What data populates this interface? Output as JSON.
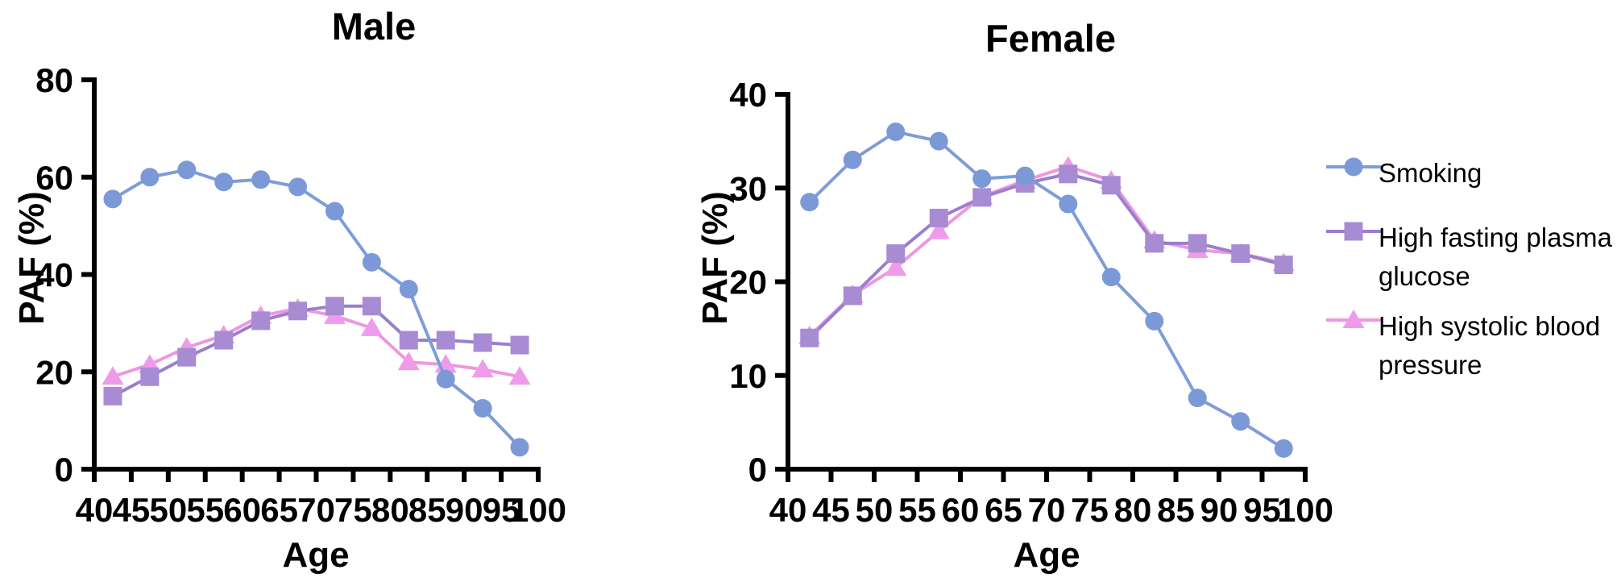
{
  "legend": {
    "items": [
      {
        "id": "smoking",
        "lines": [
          "Smoking"
        ]
      },
      {
        "id": "high-fasting-plasma-glucose",
        "lines": [
          "High fasting plasma",
          "glucose"
        ]
      },
      {
        "id": "high-systolic-blood-pressure",
        "lines": [
          "High systolic blood",
          "pressure"
        ]
      }
    ]
  },
  "chart_data": [
    {
      "type": "line",
      "title": "Male",
      "xlabel": "Age",
      "ylabel": "PAF (%)",
      "xlim": [
        40,
        100
      ],
      "ylim": [
        0,
        80
      ],
      "xticks": [
        40,
        45,
        50,
        55,
        60,
        65,
        70,
        75,
        80,
        85,
        90,
        95,
        100
      ],
      "yticks": [
        0,
        20,
        40,
        60,
        80
      ],
      "x": [
        42.5,
        47.5,
        52.5,
        57.5,
        62.5,
        67.5,
        72.5,
        77.5,
        82.5,
        87.5,
        92.5,
        97.5
      ],
      "series": [
        {
          "name": "Smoking",
          "marker": "circle",
          "line_color": "#7E9DD8",
          "marker_color": "#7B99D6",
          "values": [
            55.5,
            60,
            61.5,
            59,
            59.5,
            58,
            53,
            42.5,
            37,
            18.5,
            12.5,
            4.5
          ]
        },
        {
          "name": "High fasting plasma glucose",
          "marker": "square",
          "line_color": "#9A7ECE",
          "marker_color": "#A78CD4",
          "values": [
            15,
            19,
            23,
            26.5,
            30.5,
            32.5,
            33.5,
            33.5,
            26.5,
            26.5,
            26,
            25.5
          ]
        },
        {
          "name": "High systolic blood pressure",
          "marker": "triangle",
          "line_color": "#EE97E0",
          "marker_color": "#F09BEA",
          "values": [
            19,
            21.5,
            25,
            27.5,
            31.5,
            33,
            31.5,
            29,
            22,
            21.5,
            20.5,
            19
          ]
        }
      ]
    },
    {
      "type": "line",
      "title": "Female",
      "xlabel": "Age",
      "ylabel": "PAF (%)",
      "xlim": [
        40,
        100
      ],
      "ylim": [
        0,
        40
      ],
      "xticks": [
        40,
        45,
        50,
        55,
        60,
        65,
        70,
        75,
        80,
        85,
        90,
        95,
        100
      ],
      "yticks": [
        0,
        10,
        20,
        30,
        40
      ],
      "x": [
        42.5,
        47.5,
        52.5,
        57.5,
        62.5,
        67.5,
        72.5,
        77.5,
        82.5,
        87.5,
        92.5,
        97.5
      ],
      "series": [
        {
          "name": "Smoking",
          "marker": "circle",
          "line_color": "#7E9DD8",
          "marker_color": "#7B99D6",
          "values": [
            28.5,
            33,
            36,
            35,
            31,
            31.3,
            28.3,
            20.5,
            15.8,
            7.6,
            5.1,
            2.2
          ]
        },
        {
          "name": "High fasting plasma glucose",
          "marker": "square",
          "line_color": "#9A7ECE",
          "marker_color": "#A78CD4",
          "values": [
            14,
            18.5,
            23,
            26.8,
            29,
            30.5,
            31.5,
            30.3,
            24.1,
            24.1,
            23,
            21.8
          ]
        },
        {
          "name": "High systolic blood pressure",
          "marker": "triangle",
          "line_color": "#EE97E0",
          "marker_color": "#F09BEA",
          "values": [
            14.2,
            18.6,
            21.5,
            25.4,
            29.1,
            30.8,
            32.3,
            30.8,
            24.4,
            23.4,
            23,
            22
          ]
        }
      ]
    }
  ],
  "axis_color": "#000000",
  "background_color": "#ffffff"
}
